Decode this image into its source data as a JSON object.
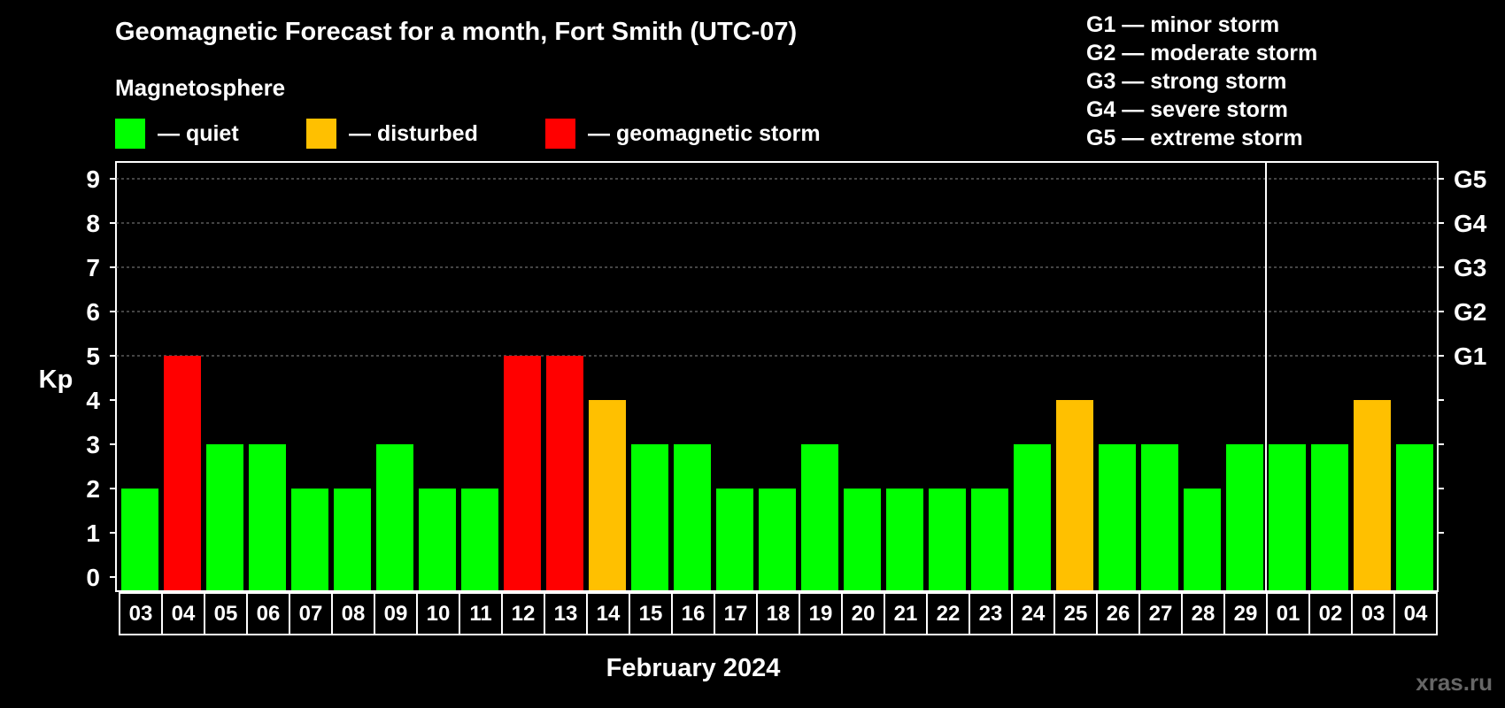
{
  "title": "Geomagnetic Forecast for a month, Fort Smith (UTC-07)",
  "legend": {
    "heading": "Magnetosphere",
    "items": [
      {
        "label": "— quiet",
        "color": "#00ff00"
      },
      {
        "label": "— disturbed",
        "color": "#ffc000"
      },
      {
        "label": "— geomagnetic storm",
        "color": "#ff0000"
      }
    ]
  },
  "g_scale": [
    "G1 — minor storm",
    "G2 — moderate storm",
    "G3 — strong storm",
    "G4 — severe storm",
    "G5 — extreme storm"
  ],
  "watermark": "xras.ru",
  "chart_data": {
    "type": "bar",
    "ylabel": "Kp",
    "xlabel": "February 2024",
    "ylim": [
      0,
      9
    ],
    "yticks": [
      "0",
      "1",
      "2",
      "3",
      "4",
      "5",
      "6",
      "7",
      "8",
      "9"
    ],
    "right_axis_labels": [
      {
        "kp": 5,
        "label": "G1"
      },
      {
        "kp": 6,
        "label": "G2"
      },
      {
        "kp": 7,
        "label": "G3"
      },
      {
        "kp": 8,
        "label": "G4"
      },
      {
        "kp": 9,
        "label": "G5"
      }
    ],
    "categories": [
      "03",
      "04",
      "05",
      "06",
      "07",
      "08",
      "09",
      "10",
      "11",
      "12",
      "13",
      "14",
      "15",
      "16",
      "17",
      "18",
      "19",
      "20",
      "21",
      "22",
      "23",
      "24",
      "25",
      "26",
      "27",
      "28",
      "29",
      "01",
      "02",
      "03",
      "04"
    ],
    "values": [
      2,
      5,
      3,
      3,
      2,
      2,
      3,
      2,
      2,
      5,
      5,
      4,
      3,
      3,
      2,
      2,
      3,
      2,
      2,
      2,
      2,
      3,
      4,
      3,
      3,
      2,
      3,
      3,
      3,
      4,
      3
    ],
    "month_divider_after_index": 26,
    "grid_dashed_from_kp": 5,
    "colors": {
      "quiet": "#00ff00",
      "disturbed": "#ffc000",
      "storm": "#ff0000"
    }
  }
}
